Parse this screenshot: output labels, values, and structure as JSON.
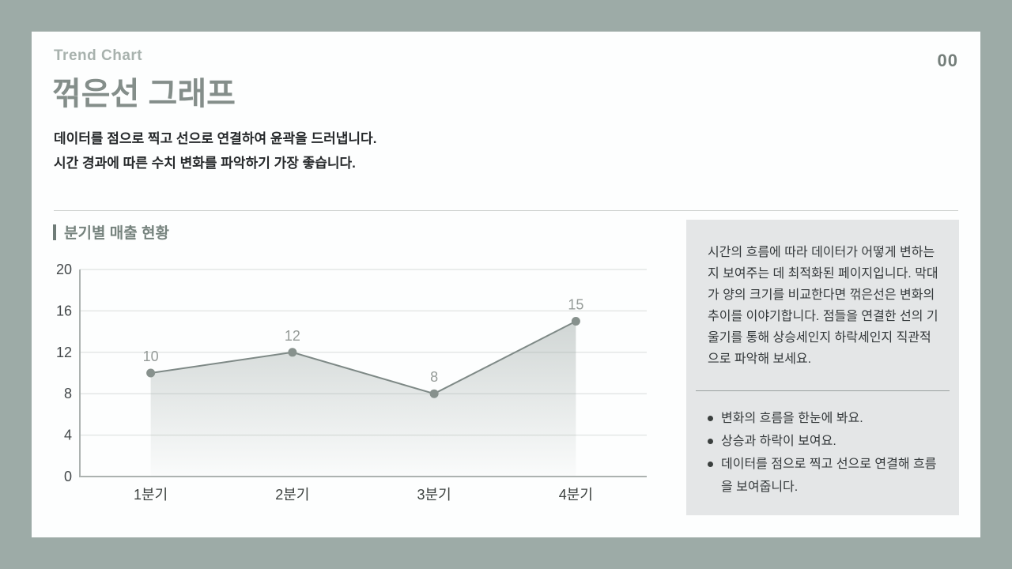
{
  "page": {
    "number": "00",
    "background_color": "#9DABA7",
    "card_color": "#FDFEFE",
    "sidebar_color": "#E4E6E7"
  },
  "header": {
    "eyebrow": "Trend Chart",
    "title": "꺾은선 그래프",
    "description_line1": "데이터를 점으로 찍고 선으로 연결하여 윤곽을 드러냅니다.",
    "description_line2": "시간 경과에 따른 수치 변화를 파악하기 가장 좋습니다."
  },
  "section": {
    "title": "분기별 매출 현황"
  },
  "chart_data": {
    "type": "line",
    "title": "분기별 매출 현황",
    "categories": [
      "1분기",
      "2분기",
      "3분기",
      "4분기"
    ],
    "values": [
      10,
      12,
      8,
      15
    ],
    "ylim": [
      0,
      20
    ],
    "yticks": [
      0,
      4,
      8,
      12,
      16,
      20
    ],
    "grid": true,
    "area_fill": true,
    "legend": "none",
    "line_color": "#7E8986",
    "point_color": "#87918D",
    "value_label_color": "#959B98",
    "axis_color": "#ACB2B0",
    "gridline_color": "#E4E7E6",
    "tick_label_color": "#43484A",
    "x_label_color": "#3B403E",
    "area_color": "#9AA5A2"
  },
  "sidebar": {
    "paragraph": "시간의 흐름에 따라 데이터가 어떻게 변하는지 보여주는 데 최적화된 페이지입니다. 막대가 양의 크기를 비교한다면 꺾은선은 변화의 추이를 이야기합니다. 점들을 연결한 선의 기울기를 통해 상승세인지 하락세인지 직관적으로 파악해 보세요.",
    "bullets": [
      "변화의 흐름을 한눈에 봐요.",
      "상승과 하락이 보여요.",
      "데이터를 점으로 찍고 선으로 연결해 흐름을 보여줍니다."
    ]
  }
}
